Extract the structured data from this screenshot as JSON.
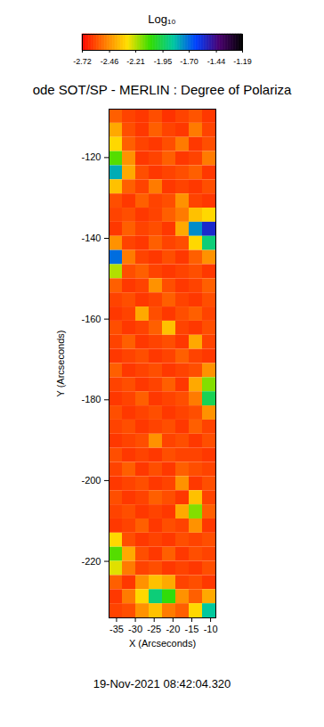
{
  "chart_data": {
    "type": "heatmap",
    "title": "ode SOT/SP - MERLIN : Degree of Polariza",
    "x_label": "X (Arcseconds)",
    "y_label": "Y (Arcseconds)",
    "xlim": [
      -37,
      -8.6
    ],
    "ylim": [
      -234,
      -108
    ],
    "xticks": [
      -35,
      -30,
      -25,
      -20,
      -15,
      -10
    ],
    "yticks": [
      -220,
      -200,
      -180,
      -160,
      -140,
      -120
    ],
    "colorbar": {
      "label": "Log₁₀",
      "range": [
        -2.72,
        -1.19
      ],
      "ticks": [
        -2.72,
        -2.46,
        -2.21,
        -1.95,
        {
          "value": -1.7,
          "label": "-1.70"
        },
        -1.44,
        -1.19
      ]
    },
    "cells": {
      "x_edges": [
        -37,
        -33.45,
        -29.9,
        -26.35,
        -22.8,
        -19.25,
        -15.7,
        -12.15,
        -8.6
      ],
      "y_edges": [
        -108,
        -111.5,
        -115,
        -118.5,
        -122,
        -125.5,
        -129,
        -132.5,
        -136,
        -139.5,
        -143,
        -146.5,
        -150,
        -153.5,
        -157,
        -160.5,
        -164,
        -167.5,
        -171,
        -174.5,
        -178,
        -181.5,
        -185,
        -188.5,
        -192,
        -195.5,
        -199,
        -202.5,
        -206,
        -209.5,
        -213,
        -216.5,
        -220,
        -223.5,
        -227,
        -230.5,
        -234
      ],
      "values": [
        [
          -2.55,
          -2.6,
          -2.62,
          -2.58,
          -2.63,
          -2.6,
          -2.57,
          -2.62
        ],
        [
          -2.4,
          -2.58,
          -2.62,
          -2.55,
          -2.6,
          -2.62,
          -2.5,
          -2.6
        ],
        [
          -2.3,
          -2.55,
          -2.6,
          -2.62,
          -2.58,
          -2.5,
          -2.62,
          -2.58
        ],
        [
          -2.1,
          -2.45,
          -2.62,
          -2.6,
          -2.55,
          -2.62,
          -2.6,
          -2.5
        ],
        [
          -1.8,
          -2.4,
          -2.58,
          -2.62,
          -2.6,
          -2.58,
          -2.55,
          -2.62
        ],
        [
          -2.35,
          -2.55,
          -2.6,
          -2.5,
          -2.62,
          -2.6,
          -2.62,
          -2.58
        ],
        [
          -2.58,
          -2.62,
          -2.55,
          -2.6,
          -2.58,
          -2.45,
          -2.6,
          -2.62
        ],
        [
          -2.6,
          -2.58,
          -2.62,
          -2.6,
          -2.55,
          -2.5,
          -2.35,
          -2.3
        ],
        [
          -2.62,
          -2.55,
          -2.6,
          -2.58,
          -2.62,
          -2.4,
          -1.75,
          -1.55
        ],
        [
          -2.45,
          -2.6,
          -2.62,
          -2.55,
          -2.6,
          -2.58,
          -2.3,
          -1.9
        ],
        [
          -1.7,
          -2.5,
          -2.6,
          -2.62,
          -2.58,
          -2.62,
          -2.55,
          -2.45
        ],
        [
          -2.2,
          -2.58,
          -2.55,
          -2.6,
          -2.62,
          -2.6,
          -2.58,
          -2.62
        ],
        [
          -2.55,
          -2.62,
          -2.6,
          -2.45,
          -2.58,
          -2.62,
          -2.6,
          -2.55
        ],
        [
          -2.6,
          -2.58,
          -2.62,
          -2.6,
          -2.55,
          -2.6,
          -2.62,
          -2.58
        ],
        [
          -2.62,
          -2.6,
          -2.4,
          -2.58,
          -2.62,
          -2.58,
          -2.55,
          -2.6
        ],
        [
          -2.58,
          -2.62,
          -2.6,
          -2.55,
          -2.35,
          -2.6,
          -2.62,
          -2.58
        ],
        [
          -2.6,
          -2.55,
          -2.62,
          -2.6,
          -2.58,
          -2.62,
          -2.4,
          -2.6
        ],
        [
          -2.62,
          -2.6,
          -2.58,
          -2.62,
          -2.6,
          -2.55,
          -2.6,
          -2.62
        ],
        [
          -2.55,
          -2.62,
          -2.6,
          -2.58,
          -2.62,
          -2.6,
          -2.58,
          -2.45
        ],
        [
          -2.6,
          -2.58,
          -2.62,
          -2.6,
          -2.55,
          -2.62,
          -2.4,
          -2.15
        ],
        [
          -2.62,
          -2.6,
          -2.55,
          -2.62,
          -2.6,
          -2.58,
          -2.5,
          -1.95
        ],
        [
          -2.58,
          -2.62,
          -2.6,
          -2.58,
          -2.62,
          -2.6,
          -2.58,
          -2.45
        ],
        [
          -2.6,
          -2.58,
          -2.62,
          -2.6,
          -2.58,
          -2.62,
          -2.55,
          -2.6
        ],
        [
          -2.62,
          -2.6,
          -2.58,
          -2.45,
          -2.6,
          -2.58,
          -2.62,
          -2.58
        ],
        [
          -2.58,
          -2.62,
          -2.6,
          -2.62,
          -2.58,
          -2.6,
          -2.6,
          -2.62
        ],
        [
          -2.6,
          -2.55,
          -2.62,
          -2.58,
          -2.62,
          -2.55,
          -2.58,
          -2.6
        ],
        [
          -2.62,
          -2.6,
          -2.58,
          -2.62,
          -2.6,
          -2.45,
          -2.62,
          -2.58
        ],
        [
          -2.58,
          -2.62,
          -2.6,
          -2.55,
          -2.58,
          -2.62,
          -2.35,
          -2.6
        ],
        [
          -2.6,
          -2.58,
          -2.62,
          -2.6,
          -2.62,
          -2.4,
          -2.15,
          -2.55
        ],
        [
          -2.62,
          -2.6,
          -2.55,
          -2.62,
          -2.58,
          -2.6,
          -2.45,
          -2.62
        ],
        [
          -2.3,
          -2.58,
          -2.62,
          -2.6,
          -2.62,
          -2.58,
          -2.6,
          -2.58
        ],
        [
          -2.1,
          -2.4,
          -2.58,
          -2.62,
          -2.55,
          -2.62,
          -2.58,
          -2.6
        ],
        [
          -2.25,
          -2.5,
          -2.6,
          -2.58,
          -2.62,
          -2.6,
          -2.62,
          -2.58
        ],
        [
          -2.55,
          -2.62,
          -2.45,
          -2.35,
          -2.4,
          -2.6,
          -2.58,
          -2.62
        ],
        [
          -2.62,
          -2.5,
          -2.3,
          -1.9,
          -2.05,
          -2.45,
          -2.55,
          -2.4
        ],
        [
          -2.6,
          -2.58,
          -2.45,
          -2.35,
          -2.5,
          -2.55,
          -2.3,
          -1.85
        ]
      ]
    },
    "footer": "19-Nov-2021 08:42:04.320"
  }
}
